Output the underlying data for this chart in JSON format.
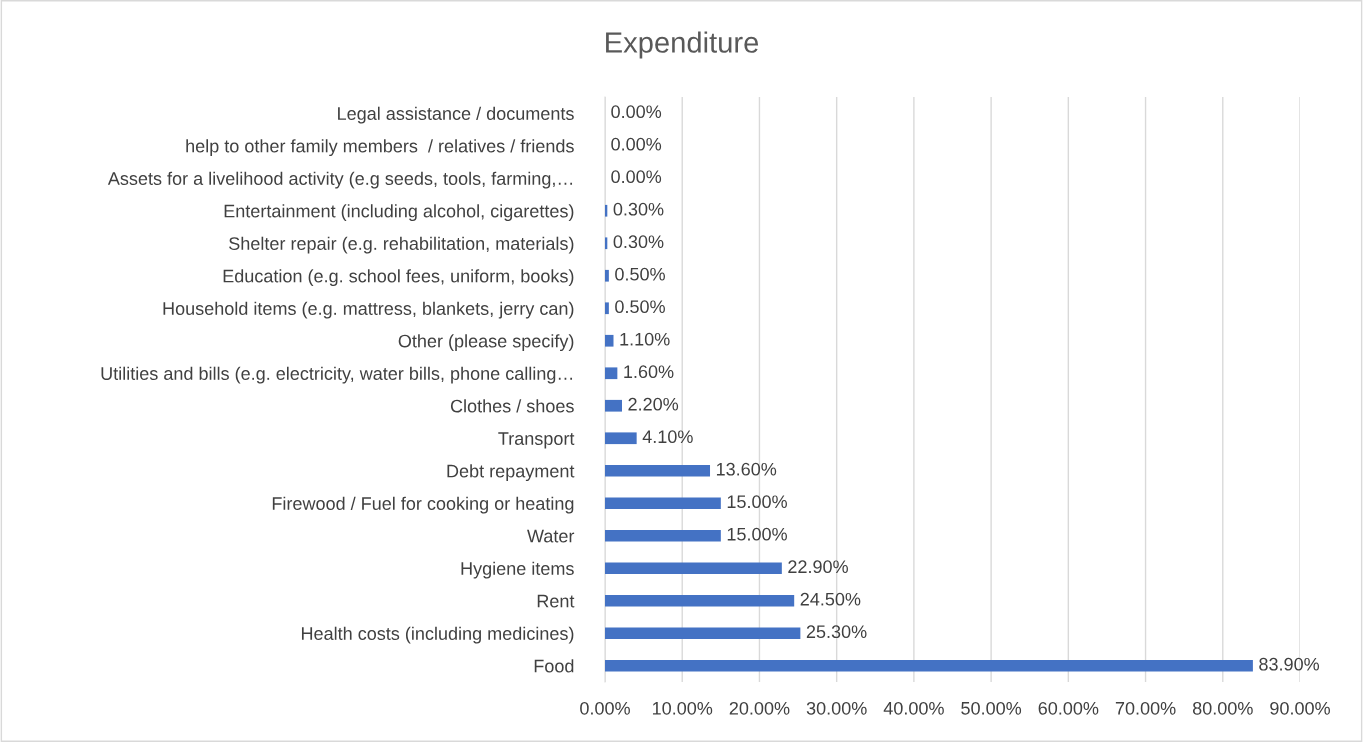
{
  "chart_data": {
    "type": "bar",
    "orientation": "horizontal",
    "title": "Expenditure",
    "categories": [
      "Legal assistance / documents",
      "help to other family members  / relatives / friends",
      "Assets for a livelihood activity (e.g seeds, tools, farming,…",
      "Entertainment (including alcohol, cigarettes)",
      "Shelter repair (e.g. rehabilitation, materials)",
      "Education (e.g. school fees, uniform, books)",
      "Household items (e.g. mattress, blankets, jerry can)",
      "Other (please specify)",
      "Utilities and bills (e.g. electricity, water bills, phone calling…",
      "Clothes / shoes",
      "Transport",
      "Debt repayment",
      "Firewood / Fuel for cooking or heating",
      "Water",
      "Hygiene items",
      "Rent",
      "Health costs (including medicines)",
      "Food"
    ],
    "values": [
      0.0,
      0.0,
      0.0,
      0.3,
      0.3,
      0.5,
      0.5,
      1.1,
      1.6,
      2.2,
      4.1,
      13.6,
      15.0,
      15.0,
      22.9,
      24.5,
      25.3,
      83.9
    ],
    "value_labels": [
      "0.00%",
      "0.00%",
      "0.00%",
      "0.30%",
      "0.30%",
      "0.50%",
      "0.50%",
      "1.10%",
      "1.60%",
      "2.20%",
      "4.10%",
      "13.60%",
      "15.00%",
      "15.00%",
      "22.90%",
      "24.50%",
      "25.30%",
      "83.90%"
    ],
    "color": "#4472c4",
    "xlim": [
      0,
      90
    ],
    "xticks": [
      {
        "value": 0,
        "label": "0.00%"
      },
      {
        "value": 10,
        "label": "10.00%"
      },
      {
        "value": 20,
        "label": "20.00%"
      },
      {
        "value": 30,
        "label": "30.00%"
      },
      {
        "value": 40,
        "label": "40.00%"
      },
      {
        "value": 50,
        "label": "50.00%"
      },
      {
        "value": 60,
        "label": "60.00%"
      },
      {
        "value": 70,
        "label": "70.00%"
      },
      {
        "value": 80,
        "label": "80.00%"
      },
      {
        "value": 90,
        "label": "90.00%"
      }
    ],
    "grid": "x",
    "legend": false
  }
}
